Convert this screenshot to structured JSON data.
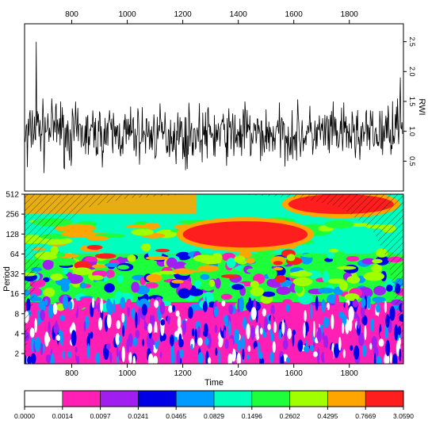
{
  "chart_data": [
    {
      "type": "line",
      "panel": "time-series",
      "ylabel": "RWI",
      "x_range": [
        630,
        1995
      ],
      "ylim": [
        0,
        2.8
      ],
      "x_ticks": [
        "800",
        "1000",
        "1200",
        "1400",
        "1600",
        "1800"
      ],
      "x_tick_values": [
        800,
        1000,
        1200,
        1400,
        1600,
        1800
      ],
      "y_ticks": [
        "0.5",
        "1.0",
        "1.5",
        "2.0",
        "2.5"
      ],
      "y_tick_values": [
        0.5,
        1.0,
        1.5,
        2.0,
        2.5
      ],
      "x_axis_position": "top",
      "y_axis_position": "right",
      "line_color": "#000000",
      "notable_points": [
        {
          "x": 640,
          "y": 0.4
        },
        {
          "x": 672,
          "y": 2.5
        },
        {
          "x": 700,
          "y": 0.3
        },
        {
          "x": 760,
          "y": 1.5
        },
        {
          "x": 1210,
          "y": 0.35
        },
        {
          "x": 1425,
          "y": 1.5
        },
        {
          "x": 1480,
          "y": 0.5
        },
        {
          "x": 1985,
          "y": 1.9
        }
      ],
      "typical_range": [
        0.5,
        1.4
      ]
    },
    {
      "type": "heatmap",
      "panel": "wavelet-power-spectrum",
      "xlabel": "Time",
      "ylabel": "Period",
      "x_range": [
        630,
        1995
      ],
      "y_scale": "log2",
      "x_ticks": [
        "800",
        "1000",
        "1200",
        "1400",
        "1600",
        "1800"
      ],
      "x_tick_values": [
        800,
        1000,
        1200,
        1400,
        1600,
        1800
      ],
      "y_ticks": [
        "2",
        "4",
        "8",
        "16",
        "32",
        "64",
        "128",
        "256",
        "512"
      ],
      "y_tick_values": [
        2,
        4,
        8,
        16,
        32,
        64,
        128,
        256,
        512
      ],
      "cone_of_influence": "hatched",
      "dominant_features": [
        {
          "period_range": [
            2,
            10
          ],
          "power_level": "0.0014-0.0465",
          "extent": "full record"
        },
        {
          "period_range": [
            10,
            64
          ],
          "power_level": "0.0829-0.4295",
          "extent": "full record"
        },
        {
          "period_range": [
            80,
            200
          ],
          "power_level": "0.7669-3.0590",
          "x_range": [
            1200,
            1650
          ]
        },
        {
          "period_range": [
            256,
            512
          ],
          "power_level": "0.7669-3.0590",
          "x_range": [
            1580,
            1960
          ]
        }
      ]
    },
    {
      "type": "legend",
      "panel": "colorbar",
      "labels": [
        "0.0000",
        "0.0014",
        "0.0097",
        "0.0241",
        "0.0465",
        "0.0829",
        "0.1496",
        "0.2602",
        "0.4295",
        "0.7669",
        "3.0590"
      ],
      "colors": [
        "#ffffff",
        "#ff1fb4",
        "#a01ff0",
        "#0000e6",
        "#009bff",
        "#00ffbe",
        "#1eff3c",
        "#a0ff00",
        "#ffa500",
        "#ff1e1e"
      ]
    }
  ]
}
